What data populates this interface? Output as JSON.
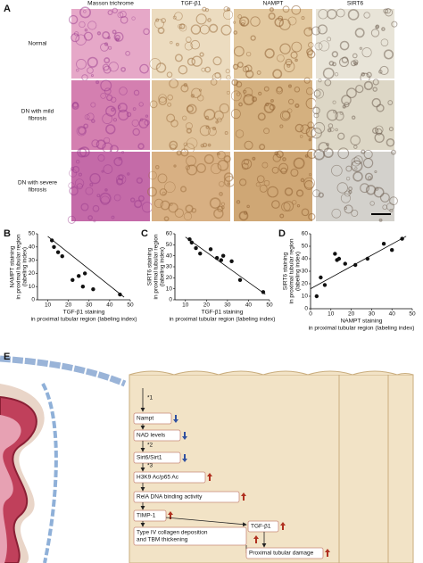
{
  "panel_a": {
    "label": "A",
    "columns": [
      "Masson trichrome",
      "TGF-β1",
      "NAMPT",
      "SIRT6"
    ],
    "rows": [
      [
        "Normal"
      ],
      [
        "DN with mild",
        "fibrosis"
      ],
      [
        "DN with severe",
        "fibrosis"
      ]
    ]
  },
  "chart_data": [
    {
      "type": "scatter",
      "label": "B",
      "ylabel": [
        "NAMPT staining",
        "in proximal tubular region",
        "(labeling index)"
      ],
      "xlabel": [
        "TGF-β1 staining",
        "in proximal tubular region (labeling index)"
      ],
      "x": [
        12,
        13,
        15,
        17,
        22,
        25,
        27,
        28,
        32,
        45
      ],
      "values": [
        45,
        40,
        36,
        33,
        15,
        18,
        10,
        20,
        8,
        4
      ],
      "color": "#111111",
      "trend": {
        "x": [
          10,
          47
        ],
        "y": [
          48,
          2
        ]
      },
      "xlim": [
        5,
        50
      ],
      "xticks": [
        10,
        20,
        30,
        40,
        50
      ],
      "ylim": [
        0,
        50
      ],
      "yticks": [
        0,
        10,
        20,
        30,
        40,
        50
      ]
    },
    {
      "type": "scatter",
      "label": "C",
      "ylabel": [
        "SIRT6 staining",
        "in proximal tubular region",
        "(labeling index)"
      ],
      "xlabel": [
        "TGF-β1 staining",
        "in proximal tubular region (labeling index)"
      ],
      "x": [
        12,
        13,
        15,
        17,
        22,
        25,
        27,
        28,
        32,
        36,
        47
      ],
      "values": [
        55,
        52,
        47,
        42,
        46,
        38,
        36,
        40,
        35,
        18,
        7
      ],
      "color": "#111111",
      "trend": {
        "x": [
          10,
          48
        ],
        "y": [
          57,
          5
        ]
      },
      "xlim": [
        5,
        50
      ],
      "xticks": [
        10,
        20,
        30,
        40,
        50
      ],
      "ylim": [
        0,
        60
      ],
      "yticks": [
        0,
        10,
        20,
        30,
        40,
        50,
        60
      ]
    },
    {
      "type": "scatter",
      "label": "D",
      "ylabel": [
        "SIRT6 staining",
        "in proximal tubular region",
        "(labeling index)"
      ],
      "xlabel": [
        "NAMPT staining",
        "in proximal tubular region (labeling index)"
      ],
      "x": [
        3,
        5,
        7,
        12,
        13,
        14,
        17,
        22,
        28,
        36,
        40,
        45
      ],
      "values": [
        10,
        25,
        19,
        44,
        39,
        40,
        36,
        35,
        40,
        52,
        47,
        56
      ],
      "color": "#111111",
      "trend": {
        "x": [
          0,
          47
        ],
        "y": [
          16,
          58
        ]
      },
      "xlim": [
        0,
        50
      ],
      "xticks": [
        0,
        10,
        20,
        30,
        40,
        50
      ],
      "ylim": [
        0,
        60
      ],
      "yticks": [
        0,
        10,
        20,
        30,
        40,
        50,
        60
      ]
    }
  ],
  "panel_e": {
    "label": "E",
    "nodes": [
      "*1",
      "Nampt",
      "NAD levels",
      "*2",
      "Sirt6/Sirt1",
      "*3",
      "H3K9 Ac/p65 Ac",
      "RelA DNA binding activity",
      "TIMP-1",
      "Type IV collagen deposition",
      "and TBM thickening",
      "TGF-β1",
      "Proximal tubular damage"
    ]
  }
}
